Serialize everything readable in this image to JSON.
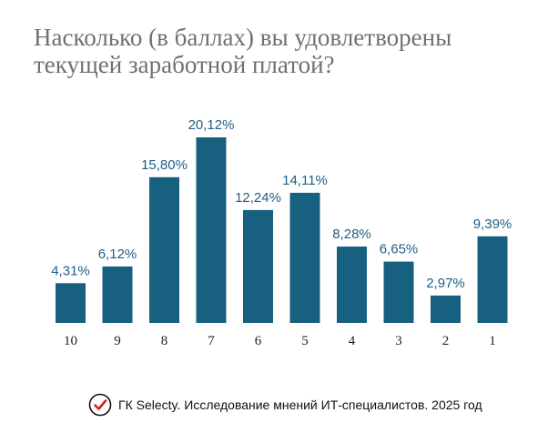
{
  "chart_data": {
    "type": "bar",
    "title": "Насколько (в баллах) вы удовлетворены текущей заработной платой?",
    "categories": [
      "10",
      "9",
      "8",
      "7",
      "6",
      "5",
      "4",
      "3",
      "2",
      "1"
    ],
    "values": [
      4.31,
      6.12,
      15.8,
      20.12,
      12.24,
      14.11,
      8.28,
      6.65,
      2.97,
      9.39
    ],
    "data_labels": [
      "4,31%",
      "6,12%",
      "15,80%",
      "20,12%",
      "12,24%",
      "14,11%",
      "8,28%",
      "6,65%",
      "2,97%",
      "9,39%"
    ],
    "xlabel": "",
    "ylabel": "",
    "ylim": [
      0,
      20.12
    ],
    "grid": false,
    "bar_color": "#17607f"
  },
  "footer": {
    "text": "ГК Selecty. Исследование мнений ИТ-специалистов. 2025 год",
    "icon": "checkmark-circle-icon",
    "icon_color": "#d81b2a"
  }
}
